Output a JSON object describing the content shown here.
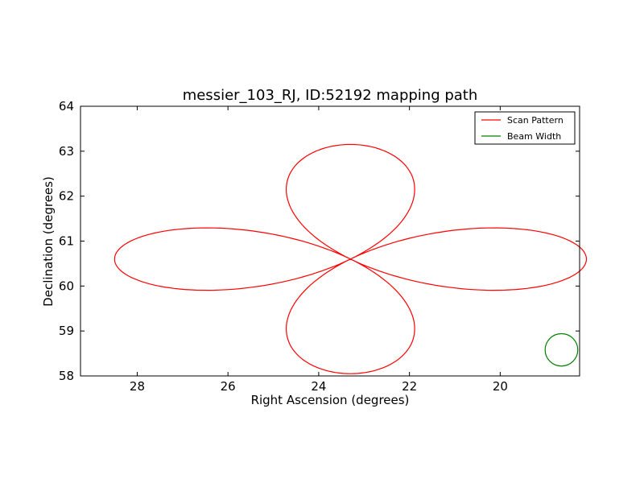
{
  "chart_data": {
    "type": "line",
    "title": "messier_103_RJ, ID:52192 mapping path",
    "xlabel": "Right Ascension (degrees)",
    "ylabel": "Declination (degrees)",
    "xlim": [
      29.25,
      18.25
    ],
    "ylim": [
      58,
      64
    ],
    "x_inverted": true,
    "xticks": [
      "28",
      "26",
      "24",
      "22",
      "20"
    ],
    "yticks": [
      "58",
      "59",
      "60",
      "61",
      "62",
      "63",
      "64"
    ],
    "grid": false,
    "legend_position": "top-right",
    "series": [
      {
        "name": "Scan Pattern",
        "color": "#ff0000",
        "kind": "rose-curve",
        "center": [
          23.3,
          60.6
        ],
        "petal_radius_ra": 5.2,
        "petal_radius_dec": 2.55,
        "petals": 4,
        "start_point": [
          28.6,
          60.65
        ]
      },
      {
        "name": "Beam Width",
        "color": "#008000",
        "kind": "circle",
        "center": [
          18.65,
          58.58
        ],
        "radius_ra": 0.36,
        "radius_dec": 0.36
      }
    ]
  }
}
